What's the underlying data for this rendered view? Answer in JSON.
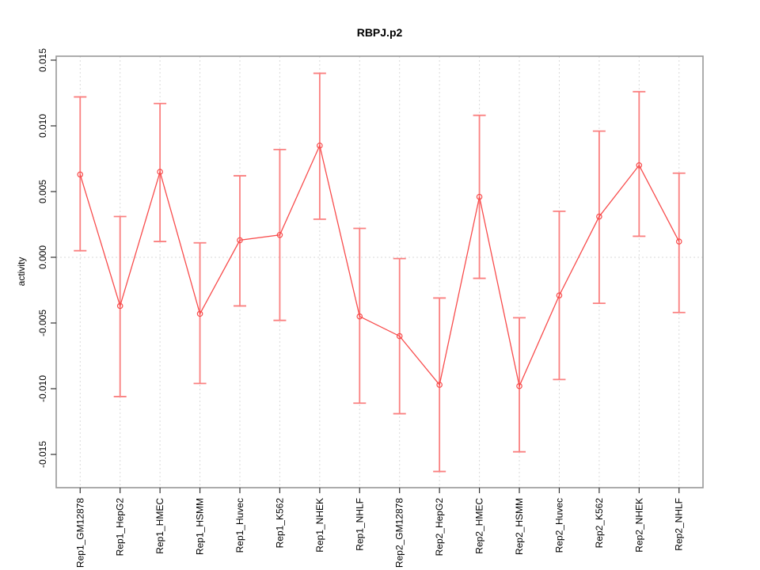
{
  "chart_data": {
    "type": "line",
    "title": "RBPJ.p2",
    "xlabel": "",
    "ylabel": "activity",
    "legend": "none",
    "grid": "dotted vertical gridline at each category; dotted horizontal line at y=0",
    "categories": [
      "Rep1_GM12878",
      "Rep1_HepG2",
      "Rep1_HMEC",
      "Rep1_HSMM",
      "Rep1_Huvec",
      "Rep1_K562",
      "Rep1_NHEK",
      "Rep1_NHLF",
      "Rep2_GM12878",
      "Rep2_HepG2",
      "Rep2_HMEC",
      "Rep2_HSMM",
      "Rep2_Huvec",
      "Rep2_K562",
      "Rep2_NHEK",
      "Rep2_NHLF"
    ],
    "series": [
      {
        "name": "activity",
        "values": [
          0.0063,
          -0.0037,
          0.0065,
          -0.0043,
          0.0013,
          0.0017,
          0.0085,
          -0.0045,
          -0.006,
          -0.0097,
          0.0046,
          -0.0098,
          -0.0029,
          0.0031,
          0.007,
          0.0012
        ],
        "error_high": [
          0.0122,
          0.0031,
          0.0117,
          0.0011,
          0.0062,
          0.0082,
          0.014,
          0.0022,
          -0.0001,
          -0.0031,
          0.0108,
          -0.0046,
          0.0035,
          0.0096,
          0.0126,
          0.0064
        ],
        "error_low": [
          0.0005,
          -0.0106,
          0.0012,
          -0.0096,
          -0.0037,
          -0.0048,
          0.0029,
          -0.0111,
          -0.0119,
          -0.0163,
          -0.0016,
          -0.0148,
          -0.0093,
          -0.0035,
          0.0016,
          -0.0042
        ]
      }
    ],
    "yticks": [
      -0.015,
      -0.01,
      -0.005,
      0.0,
      0.005,
      0.01,
      0.015
    ],
    "ytick_labels": [
      "-0.015",
      "-0.010",
      "-0.005",
      "0.000",
      "0.005",
      "0.010",
      "0.015"
    ],
    "ylim": [
      -0.01753,
      0.0153
    ],
    "xlim": [
      0.4,
      16.6
    ],
    "colors": {
      "line": "#f84c4c",
      "marker": "#f84c4c",
      "error_bar": "#fa8080",
      "grid": "#d9d9d9",
      "box": "#989898",
      "tick": "#333333",
      "text": "#000000",
      "background": "#ffffff"
    }
  }
}
